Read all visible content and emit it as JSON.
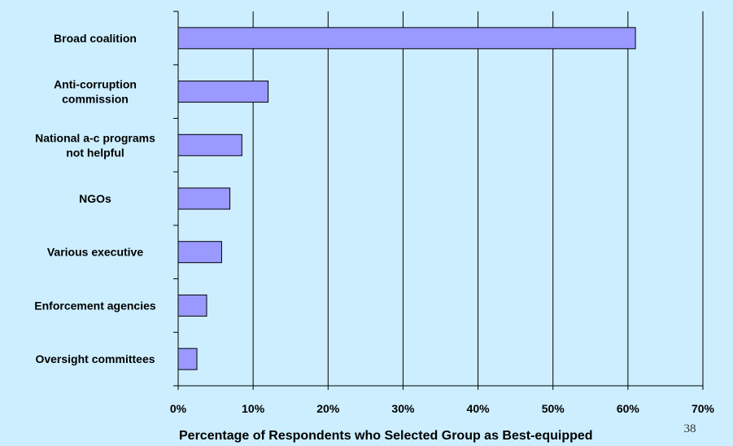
{
  "chart_data": {
    "type": "bar",
    "orientation": "horizontal",
    "categories": [
      [
        "Broad coalition"
      ],
      [
        "Anti-corruption",
        "commission"
      ],
      [
        "National a-c programs",
        "not helpful"
      ],
      [
        "NGOs"
      ],
      [
        "Various executive"
      ],
      [
        "Enforcement agencies"
      ],
      [
        "Oversight committees"
      ]
    ],
    "values": [
      61,
      12,
      8.5,
      6.9,
      5.8,
      3.8,
      2.5
    ],
    "xlabel": "Percentage of Respondents who Selected Group as Best-equipped",
    "xlim": [
      0,
      70
    ],
    "xticks": [
      "0%",
      "10%",
      "20%",
      "30%",
      "40%",
      "50%",
      "60%",
      "70%"
    ],
    "grid": "vertical",
    "bar_color": "#9999ff",
    "background_color": "#cceeff"
  },
  "slide": {
    "page_number": "38"
  }
}
